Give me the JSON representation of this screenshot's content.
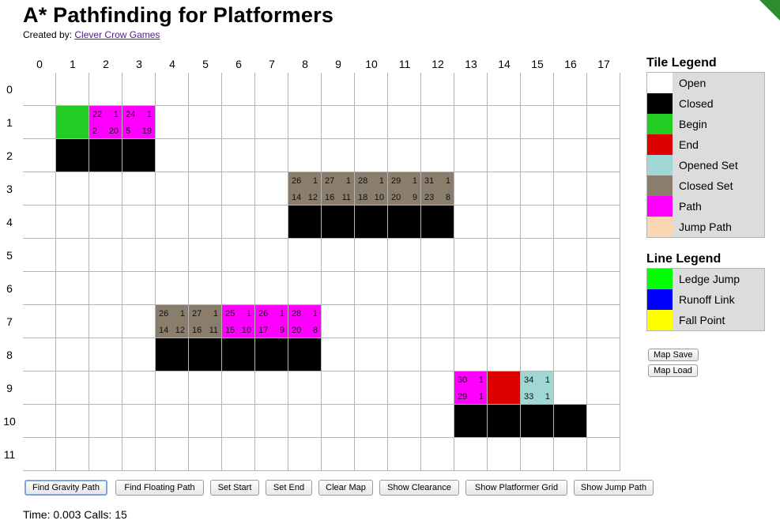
{
  "header": {
    "title": "A* Pathfinding for Platformers",
    "credit_prefix": "Created by:",
    "credit_link": "Clever Crow Games"
  },
  "grid": {
    "cols": [
      "0",
      "1",
      "2",
      "3",
      "4",
      "5",
      "6",
      "7",
      "8",
      "9",
      "10",
      "11",
      "12",
      "13",
      "14",
      "15",
      "16",
      "17"
    ],
    "rows": [
      "0",
      "1",
      "2",
      "3",
      "4",
      "5",
      "6",
      "7",
      "8",
      "9",
      "10",
      "11"
    ],
    "tile_colors": {
      "open": "#ffffff",
      "closed": "#000000",
      "begin": "#22cc22",
      "end": "#dd0000",
      "opened": "#a0d6d4",
      "closedset": "#8b7d6b",
      "path": "#ff00ff",
      "jump": "#fad7b4"
    },
    "cells": [
      {
        "r": 1,
        "c": 1,
        "type": "begin"
      },
      {
        "r": 1,
        "c": 2,
        "type": "path",
        "v": [
          "22",
          "1",
          "2",
          "20"
        ]
      },
      {
        "r": 1,
        "c": 3,
        "type": "path",
        "v": [
          "24",
          "1",
          "5",
          "19"
        ]
      },
      {
        "r": 2,
        "c": 1,
        "type": "closed"
      },
      {
        "r": 2,
        "c": 2,
        "type": "closed"
      },
      {
        "r": 2,
        "c": 3,
        "type": "closed"
      },
      {
        "r": 3,
        "c": 8,
        "type": "closedset",
        "v": [
          "26",
          "1",
          "14",
          "12"
        ]
      },
      {
        "r": 3,
        "c": 9,
        "type": "closedset",
        "v": [
          "27",
          "1",
          "16",
          "11"
        ]
      },
      {
        "r": 3,
        "c": 10,
        "type": "closedset",
        "v": [
          "28",
          "1",
          "18",
          "10"
        ]
      },
      {
        "r": 3,
        "c": 11,
        "type": "closedset",
        "v": [
          "29",
          "1",
          "20",
          "9"
        ]
      },
      {
        "r": 3,
        "c": 12,
        "type": "closedset",
        "v": [
          "31",
          "1",
          "23",
          "8"
        ]
      },
      {
        "r": 4,
        "c": 8,
        "type": "closed"
      },
      {
        "r": 4,
        "c": 9,
        "type": "closed"
      },
      {
        "r": 4,
        "c": 10,
        "type": "closed"
      },
      {
        "r": 4,
        "c": 11,
        "type": "closed"
      },
      {
        "r": 4,
        "c": 12,
        "type": "closed"
      },
      {
        "r": 7,
        "c": 4,
        "type": "closedset",
        "v": [
          "26",
          "1",
          "14",
          "12"
        ]
      },
      {
        "r": 7,
        "c": 5,
        "type": "closedset",
        "v": [
          "27",
          "1",
          "16",
          "11"
        ]
      },
      {
        "r": 7,
        "c": 6,
        "type": "path",
        "v": [
          "25",
          "1",
          "15",
          "10"
        ]
      },
      {
        "r": 7,
        "c": 7,
        "type": "path",
        "v": [
          "26",
          "1",
          "17",
          "9"
        ]
      },
      {
        "r": 7,
        "c": 8,
        "type": "path",
        "v": [
          "28",
          "1",
          "20",
          "8"
        ]
      },
      {
        "r": 8,
        "c": 4,
        "type": "closed"
      },
      {
        "r": 8,
        "c": 5,
        "type": "closed"
      },
      {
        "r": 8,
        "c": 6,
        "type": "closed"
      },
      {
        "r": 8,
        "c": 7,
        "type": "closed"
      },
      {
        "r": 8,
        "c": 8,
        "type": "closed"
      },
      {
        "r": 9,
        "c": 13,
        "type": "path",
        "v": [
          "30",
          "1",
          "29",
          "1"
        ]
      },
      {
        "r": 9,
        "c": 14,
        "type": "end"
      },
      {
        "r": 9,
        "c": 15,
        "type": "opened",
        "v": [
          "34",
          "1",
          "33",
          "1"
        ]
      },
      {
        "r": 10,
        "c": 13,
        "type": "closed"
      },
      {
        "r": 10,
        "c": 14,
        "type": "closed"
      },
      {
        "r": 10,
        "c": 15,
        "type": "closed"
      },
      {
        "r": 10,
        "c": 16,
        "type": "closed"
      }
    ]
  },
  "tile_legend": {
    "title": "Tile Legend",
    "items": [
      {
        "label": "Open",
        "color": "#ffffff"
      },
      {
        "label": "Closed",
        "color": "#000000"
      },
      {
        "label": "Begin",
        "color": "#22cc22"
      },
      {
        "label": "End",
        "color": "#dd0000"
      },
      {
        "label": "Opened Set",
        "color": "#a0d6d4"
      },
      {
        "label": "Closed Set",
        "color": "#8b7d6b"
      },
      {
        "label": "Path",
        "color": "#ff00ff"
      },
      {
        "label": "Jump Path",
        "color": "#fad7b4"
      }
    ]
  },
  "line_legend": {
    "title": "Line Legend",
    "items": [
      {
        "label": "Ledge Jump",
        "color": "#00ff00"
      },
      {
        "label": "Runoff Link",
        "color": "#0000ff"
      },
      {
        "label": "Fall Point",
        "color": "#ffff00"
      }
    ]
  },
  "map_buttons": {
    "save": "Map Save",
    "load": "Map Load"
  },
  "toolbar": {
    "buttons": [
      "Find Gravity Path",
      "Find Floating Path",
      "Set Start",
      "Set End",
      "Clear Map",
      "Show Clearance",
      "Show Platformer Grid",
      "Show Jump Path"
    ]
  },
  "status": "Time: 0.003 Calls: 15"
}
